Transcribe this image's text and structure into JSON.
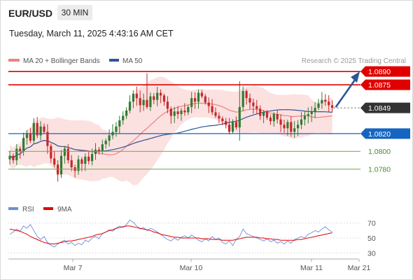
{
  "header": {
    "pair": "EUR/USD",
    "timeframe": "30 MIN",
    "timestamp": "Tuesday, March 11, 2025 4:43:16 AM CET"
  },
  "legend": {
    "ma20": "MA 20 + Bollinger Bands",
    "ma50": "MA 50",
    "rsi": "RSI",
    "rsi_ma": "9MA",
    "credit": "Research © 2025 Trading Central"
  },
  "colors": {
    "bull": "#2e7d32",
    "bear": "#c62828",
    "ma20": "#f08080",
    "ma50": "#2b5797",
    "bands": "#fbdcdc",
    "resistance": "#e00000",
    "support_blue": "#1565c0",
    "support_green": "#6aa84f",
    "current": "#333333",
    "rsi": "#6b8ed8",
    "rsi_ma": "#e00000"
  },
  "price_levels": [
    {
      "value": "1.0890",
      "kind": "resistance"
    },
    {
      "value": "1.0875",
      "kind": "resistance"
    },
    {
      "value": "1.0849",
      "kind": "current"
    },
    {
      "value": "1.0820",
      "kind": "pivot"
    },
    {
      "value": "1.0800",
      "kind": "support"
    },
    {
      "value": "1.0780",
      "kind": "support"
    }
  ],
  "x_axis": [
    "Mar 7",
    "Mar 10",
    "Mar 11",
    "Mar 21"
  ],
  "rsi_axis": [
    "70",
    "50",
    "30"
  ],
  "chart_data": {
    "type": "candlestick",
    "title": "EUR/USD",
    "timeframe": "30 MIN",
    "ylim": [
      1.0756,
      1.0898
    ],
    "closes": [
      1.0795,
      1.079,
      1.0803,
      1.08,
      1.0815,
      1.082,
      1.0812,
      1.0832,
      1.0818,
      1.0828,
      1.0822,
      1.0806,
      1.0792,
      1.0785,
      1.0774,
      1.0795,
      1.0803,
      1.079,
      1.0782,
      1.0778,
      1.0791,
      1.0786,
      1.0794,
      1.0789,
      1.0797,
      1.0802,
      1.08,
      1.0808,
      1.0812,
      1.0818,
      1.0822,
      1.0828,
      1.0835,
      1.084,
      1.0846,
      1.0856,
      1.0865,
      1.086,
      1.0852,
      1.0858,
      1.085,
      1.0862,
      1.0858,
      1.0866,
      1.0863,
      1.0856,
      1.0848,
      1.084,
      1.0845,
      1.0842,
      1.0846,
      1.0844,
      1.085,
      1.086,
      1.0856,
      1.0866,
      1.0862,
      1.0855,
      1.0851,
      1.0844,
      1.084,
      1.0837,
      1.0834,
      1.083,
      1.0822,
      1.0833,
      1.0827,
      1.085,
      1.0868,
      1.086,
      1.0855,
      1.0851,
      1.0848,
      1.084,
      1.0844,
      1.0838,
      1.0834,
      1.0842,
      1.0836,
      1.083,
      1.0826,
      1.0833,
      1.0822,
      1.0826,
      1.083,
      1.0836,
      1.084,
      1.0842,
      1.0845,
      1.0849,
      1.0854,
      1.0858,
      1.0856,
      1.0852,
      1.0849
    ],
    "rsi": [
      55,
      58,
      62,
      59,
      66,
      63,
      68,
      60,
      52,
      48,
      52,
      44,
      40,
      38,
      42,
      45,
      47,
      42,
      44,
      40,
      43,
      41,
      47,
      45,
      50,
      52,
      49,
      56,
      58,
      61,
      59,
      63,
      66,
      64,
      68,
      74,
      71,
      66,
      62,
      64,
      60,
      63,
      61,
      58,
      55,
      51,
      48,
      46,
      50,
      47,
      51,
      53,
      50,
      54,
      51,
      47,
      45,
      49,
      46,
      52,
      48,
      50,
      44,
      42,
      46,
      40,
      48,
      52,
      62,
      56,
      54,
      52,
      50,
      48,
      46,
      49,
      45,
      47,
      43,
      45,
      42,
      46,
      43,
      48,
      50,
      52,
      50,
      55,
      57,
      60,
      58,
      62,
      65,
      61,
      58
    ],
    "rsi_ma": [
      62,
      61,
      60,
      59,
      57,
      55,
      52,
      50,
      48,
      46,
      44,
      43,
      42,
      42,
      43,
      44,
      45,
      46,
      46,
      47,
      48,
      49,
      50,
      51,
      52,
      54,
      55,
      56,
      58,
      60,
      61,
      63,
      64,
      65,
      66,
      66,
      65,
      64,
      63,
      62,
      61,
      60,
      58,
      57,
      55,
      54,
      53,
      52,
      51,
      51,
      50,
      50,
      50,
      50,
      50,
      50,
      49,
      49,
      49,
      48,
      48,
      48,
      47,
      47,
      47,
      47,
      48,
      49,
      50,
      51,
      51,
      51,
      51,
      50,
      50,
      49,
      49,
      48,
      48,
      47,
      47,
      47,
      47,
      47,
      48,
      48,
      49,
      50,
      51,
      52,
      53,
      54,
      55,
      56,
      57
    ],
    "rsi_range": [
      20,
      80
    ],
    "rsi_levels": [
      70,
      50,
      30
    ],
    "forecast": {
      "from": 1.0849,
      "to": 1.089
    }
  }
}
